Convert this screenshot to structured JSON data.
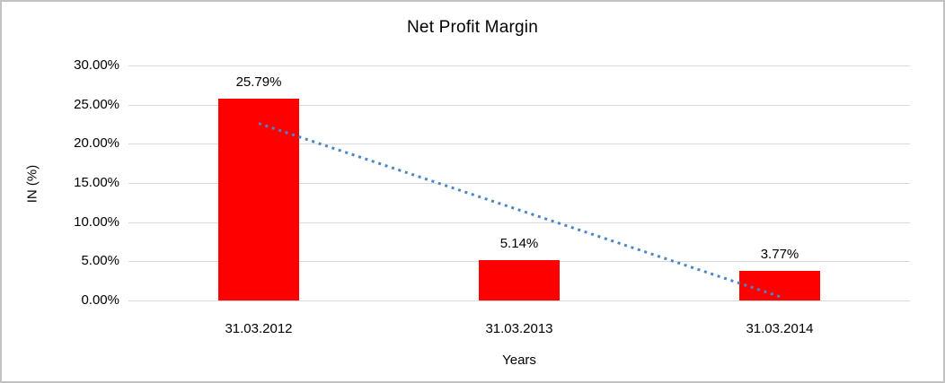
{
  "chart_data": {
    "type": "bar",
    "title": "Net Profit Margin",
    "xlabel": "Years",
    "ylabel": "IN (%)",
    "categories": [
      "31.03.2012",
      "31.03.2013",
      "31.03.2014"
    ],
    "values": [
      25.79,
      5.14,
      3.77
    ],
    "value_labels": [
      "25.79%",
      "5.14%",
      "3.77%"
    ],
    "ylim": [
      0,
      30
    ],
    "ytick_step": 5,
    "ytick_labels": [
      "0.00%",
      "5.00%",
      "10.00%",
      "15.00%",
      "20.00%",
      "25.00%",
      "30.00%"
    ],
    "grid": "horizontal",
    "legend": "none",
    "colors": {
      "bar": "#ff0000",
      "gridline": "#d9d9d9",
      "axis_line": "#d9d9d9",
      "trendline": "#4a86c8",
      "text": "#000000",
      "frame_border": "#c2c2c2"
    },
    "trendline": {
      "type": "linear-dotted",
      "start_value": 22.6,
      "end_value": 0.5
    }
  }
}
